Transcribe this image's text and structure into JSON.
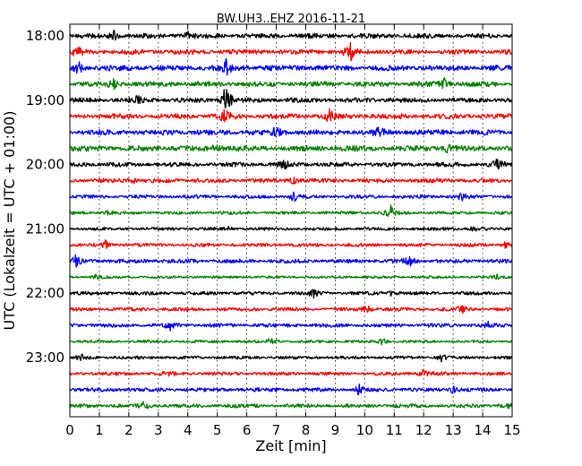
{
  "chart_data": {
    "type": "line",
    "title": "BW.UH3..EHZ 2016-11-21",
    "xlabel": "Zeit  [min]",
    "ylabel": "UTC (Lokalzeit = UTC + 01:00)",
    "xlim": [
      0,
      15
    ],
    "x_ticks": [
      "0",
      "1",
      "2",
      "3",
      "4",
      "5",
      "6",
      "7",
      "8",
      "9",
      "10",
      "11",
      "12",
      "13",
      "14",
      "15"
    ],
    "y_ticks": [
      "18:00",
      "19:00",
      "20:00",
      "21:00",
      "22:00",
      "23:00"
    ],
    "grid": "vertical dotted",
    "trace_interval_minutes": 15,
    "start_time": "18:00",
    "trace_colors": [
      "#000000",
      "#ff0000",
      "#0000ff",
      "#008000"
    ],
    "traces": [
      {
        "start": "18:00",
        "color": "#000000",
        "amplitude": 0.3,
        "events": [
          {
            "x": 1.5,
            "amp": 0.7
          },
          {
            "x": 4.0,
            "amp": 0.45
          }
        ]
      },
      {
        "start": "18:15",
        "color": "#ff0000",
        "amplitude": 0.3,
        "events": [
          {
            "x": 0.25,
            "amp": 0.55
          },
          {
            "x": 9.5,
            "amp": 1.1
          }
        ]
      },
      {
        "start": "18:30",
        "color": "#0000ff",
        "amplitude": 0.35,
        "events": [
          {
            "x": 0.3,
            "amp": 0.7
          },
          {
            "x": 5.3,
            "amp": 1.0
          }
        ]
      },
      {
        "start": "18:45",
        "color": "#008000",
        "amplitude": 0.32,
        "events": [
          {
            "x": 1.5,
            "amp": 0.5
          },
          {
            "x": 12.7,
            "amp": 0.55
          }
        ]
      },
      {
        "start": "19:00",
        "color": "#000000",
        "amplitude": 0.3,
        "events": [
          {
            "x": 2.3,
            "amp": 0.5
          },
          {
            "x": 5.3,
            "amp": 2.2
          }
        ]
      },
      {
        "start": "19:15",
        "color": "#ff0000",
        "amplitude": 0.32,
        "events": [
          {
            "x": 5.3,
            "amp": 1.0
          },
          {
            "x": 8.8,
            "amp": 0.7
          }
        ]
      },
      {
        "start": "19:30",
        "color": "#0000ff",
        "amplitude": 0.35,
        "events": [
          {
            "x": 7.0,
            "amp": 0.6
          },
          {
            "x": 10.5,
            "amp": 0.55
          }
        ]
      },
      {
        "start": "19:45",
        "color": "#008000",
        "amplitude": 0.35,
        "events": [
          {
            "x": 5.0,
            "amp": 0.6
          },
          {
            "x": 12.8,
            "amp": 0.5
          }
        ]
      },
      {
        "start": "20:00",
        "color": "#000000",
        "amplitude": 0.28,
        "events": [
          {
            "x": 7.3,
            "amp": 0.5
          },
          {
            "x": 14.5,
            "amp": 0.6
          }
        ]
      },
      {
        "start": "20:15",
        "color": "#ff0000",
        "amplitude": 0.26,
        "events": [
          {
            "x": 2.1,
            "amp": 0.45
          },
          {
            "x": 7.6,
            "amp": 0.5
          }
        ]
      },
      {
        "start": "20:30",
        "color": "#0000ff",
        "amplitude": 0.22,
        "events": [
          {
            "x": 7.6,
            "amp": 0.45
          },
          {
            "x": 13.3,
            "amp": 0.5
          }
        ]
      },
      {
        "start": "20:45",
        "color": "#008000",
        "amplitude": 0.2,
        "events": [
          {
            "x": 10.9,
            "amp": 0.9
          },
          {
            "x": 1.3,
            "amp": 0.35
          }
        ]
      },
      {
        "start": "21:00",
        "color": "#000000",
        "amplitude": 0.2,
        "events": [
          {
            "x": 5.3,
            "amp": 0.35
          },
          {
            "x": 13.7,
            "amp": 0.35
          }
        ]
      },
      {
        "start": "21:15",
        "color": "#ff0000",
        "amplitude": 0.22,
        "events": [
          {
            "x": 1.2,
            "amp": 0.45
          },
          {
            "x": 14.8,
            "amp": 0.4
          }
        ]
      },
      {
        "start": "21:30",
        "color": "#0000ff",
        "amplitude": 0.26,
        "events": [
          {
            "x": 0.2,
            "amp": 0.6
          },
          {
            "x": 11.5,
            "amp": 0.6
          }
        ]
      },
      {
        "start": "21:45",
        "color": "#008000",
        "amplitude": 0.16,
        "events": [
          {
            "x": 0.9,
            "amp": 0.3
          },
          {
            "x": 14.5,
            "amp": 0.3
          }
        ]
      },
      {
        "start": "22:00",
        "color": "#000000",
        "amplitude": 0.22,
        "events": [
          {
            "x": 8.3,
            "amp": 0.5
          },
          {
            "x": 10.9,
            "amp": 0.45
          }
        ]
      },
      {
        "start": "22:15",
        "color": "#ff0000",
        "amplitude": 0.22,
        "events": [
          {
            "x": 10.1,
            "amp": 0.55
          },
          {
            "x": 13.3,
            "amp": 0.4
          }
        ]
      },
      {
        "start": "22:30",
        "color": "#0000ff",
        "amplitude": 0.24,
        "events": [
          {
            "x": 3.4,
            "amp": 0.5
          },
          {
            "x": 14.2,
            "amp": 0.4
          }
        ]
      },
      {
        "start": "22:45",
        "color": "#008000",
        "amplitude": 0.18,
        "events": [
          {
            "x": 6.8,
            "amp": 0.35
          },
          {
            "x": 10.6,
            "amp": 0.35
          }
        ]
      },
      {
        "start": "23:00",
        "color": "#000000",
        "amplitude": 0.2,
        "events": [
          {
            "x": 0.4,
            "amp": 0.4
          },
          {
            "x": 12.6,
            "amp": 0.45
          }
        ]
      },
      {
        "start": "23:15",
        "color": "#ff0000",
        "amplitude": 0.22,
        "events": [
          {
            "x": 3.3,
            "amp": 0.4
          },
          {
            "x": 12.0,
            "amp": 0.4
          }
        ]
      },
      {
        "start": "23:30",
        "color": "#0000ff",
        "amplitude": 0.24,
        "events": [
          {
            "x": 9.8,
            "amp": 0.55
          },
          {
            "x": 13.0,
            "amp": 0.45
          }
        ]
      },
      {
        "start": "23:45",
        "color": "#008000",
        "amplitude": 0.24,
        "events": [
          {
            "x": 2.5,
            "amp": 0.45
          },
          {
            "x": 14.9,
            "amp": 0.4
          }
        ]
      }
    ]
  }
}
